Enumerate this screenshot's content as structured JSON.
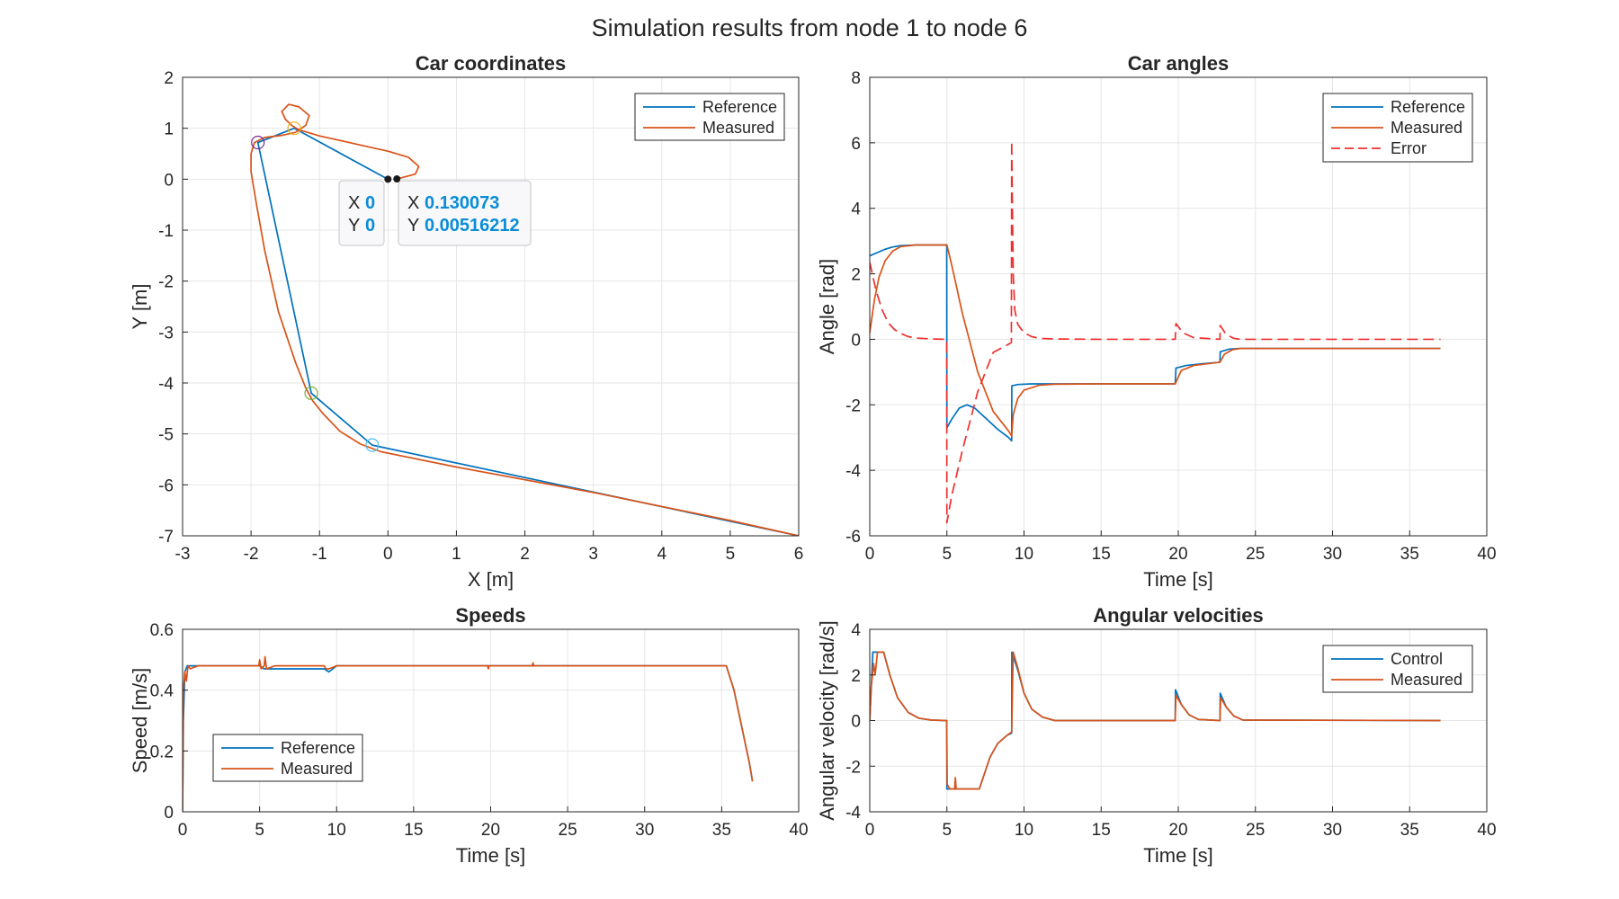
{
  "figure_title": "Simulation results from node 1 to node 6",
  "colors": {
    "blue": "#0072BD",
    "orange": "#D95319",
    "red": "#EF2F2F",
    "grid": "#e6e6e6",
    "axes": "#262626"
  },
  "chart_data": [
    {
      "id": "coords",
      "type": "line",
      "title": "Car coordinates",
      "xlabel": "X [m]",
      "ylabel": "Y [m]",
      "xlim": [
        -3,
        6
      ],
      "ylim": [
        -7,
        2
      ],
      "xticks": [
        -3,
        -2,
        -1,
        0,
        1,
        2,
        3,
        4,
        5,
        6
      ],
      "yticks": [
        -7,
        -6,
        -5,
        -4,
        -3,
        -2,
        -1,
        0,
        1,
        2
      ],
      "grid": true,
      "legend_position": "top-right",
      "series": [
        {
          "name": "Reference",
          "color": "blue",
          "x": [
            0,
            -1.37,
            -1.9,
            -1.12,
            -0.23,
            6.0
          ],
          "y": [
            0,
            1.0,
            0.72,
            -4.2,
            -5.22,
            -7.0
          ]
        },
        {
          "name": "Measured",
          "color": "orange",
          "x": [
            0.13,
            0.4,
            0.45,
            0.3,
            0.0,
            -0.5,
            -1.0,
            -1.3,
            -1.4,
            -1.5,
            -1.55,
            -1.45,
            -1.3,
            -1.15,
            -1.2,
            -1.35,
            -1.55,
            -1.8,
            -1.95,
            -2.0,
            -2.0,
            -1.92,
            -1.8,
            -1.6,
            -1.35,
            -1.2,
            -1.1,
            -0.95,
            -0.7,
            -0.4,
            -0.1,
            1.0,
            3.0,
            5.0,
            6.0
          ],
          "y": [
            0.005,
            0.1,
            0.25,
            0.43,
            0.55,
            0.7,
            0.85,
            0.97,
            1.05,
            1.18,
            1.33,
            1.47,
            1.42,
            1.25,
            1.06,
            0.92,
            0.86,
            0.82,
            0.72,
            0.5,
            0.15,
            -0.5,
            -1.4,
            -2.6,
            -3.6,
            -4.1,
            -4.35,
            -4.6,
            -4.95,
            -5.2,
            -5.35,
            -5.65,
            -6.15,
            -6.7,
            -7.0
          ]
        }
      ],
      "markers": [
        {
          "x": -1.9,
          "y": 0.72,
          "color": "#7E2F8E"
        },
        {
          "x": -1.37,
          "y": 1.0,
          "color": "#EDB120"
        },
        {
          "x": -1.12,
          "y": -4.2,
          "color": "#77AC30"
        },
        {
          "x": -0.23,
          "y": -5.22,
          "color": "#4DBEEE"
        }
      ],
      "datatips": [
        {
          "x_label": "X",
          "x_value": "0",
          "y_label": "Y",
          "y_value": "0",
          "px": 0,
          "py": 0
        },
        {
          "x_label": "X",
          "x_value": "0.130073",
          "y_label": "Y",
          "y_value": "0.00516212",
          "px": 0.130073,
          "py": 0.00516212
        }
      ]
    },
    {
      "id": "angles",
      "type": "line",
      "title": "Car angles",
      "xlabel": "Time [s]",
      "ylabel": "Angle [rad]",
      "xlim": [
        0,
        40
      ],
      "ylim": [
        -6,
        8
      ],
      "xticks": [
        0,
        5,
        10,
        15,
        20,
        25,
        30,
        35,
        40
      ],
      "yticks": [
        -6,
        -4,
        -2,
        0,
        2,
        4,
        6,
        8
      ],
      "grid": true,
      "legend_position": "top-right",
      "series": [
        {
          "name": "Reference",
          "color": "blue",
          "x": [
            0,
            0.5,
            1,
            1.5,
            2,
            3,
            4,
            4.99,
            5.0,
            5.3,
            5.8,
            6.3,
            6.8,
            7.5,
            8.3,
            9.0,
            9.2,
            9.21,
            9.6,
            10.5,
            12,
            15,
            19.8,
            19.85,
            20.5,
            21.5,
            22.7,
            22.72,
            23.3,
            24,
            37
          ],
          "x_note": "",
          "y": [
            2.55,
            2.65,
            2.75,
            2.82,
            2.86,
            2.88,
            2.88,
            2.88,
            -2.7,
            -2.45,
            -2.1,
            -2.0,
            -2.1,
            -2.4,
            -2.75,
            -3.0,
            -3.1,
            -1.42,
            -1.38,
            -1.36,
            -1.36,
            -1.36,
            -1.36,
            -0.88,
            -0.8,
            -0.75,
            -0.7,
            -0.38,
            -0.3,
            -0.28,
            -0.28
          ]
        },
        {
          "name": "Measured",
          "color": "orange",
          "x": [
            0,
            0.3,
            0.6,
            1.0,
            1.5,
            2.0,
            3.0,
            4.0,
            5.0,
            5.3,
            6.0,
            7.0,
            8.0,
            9.0,
            9.2,
            9.3,
            9.6,
            10.0,
            11.0,
            12,
            15,
            19.8,
            20.2,
            21,
            22.7,
            23.0,
            23.5,
            24,
            37
          ],
          "y": [
            0.2,
            1.2,
            1.9,
            2.4,
            2.7,
            2.83,
            2.88,
            2.88,
            2.88,
            2.3,
            0.8,
            -1.0,
            -2.2,
            -2.8,
            -2.95,
            -2.3,
            -1.8,
            -1.55,
            -1.4,
            -1.37,
            -1.36,
            -1.36,
            -0.95,
            -0.8,
            -0.7,
            -0.45,
            -0.32,
            -0.28,
            -0.28
          ]
        },
        {
          "name": "Error",
          "color": "red",
          "dashed": true,
          "x": [
            0,
            0.4,
            0.8,
            1.2,
            1.6,
            2.0,
            2.5,
            3.0,
            4.0,
            4.99,
            5.0,
            5.3,
            6.0,
            7.0,
            8.0,
            9.0,
            9.18,
            9.2,
            9.25,
            9.3,
            9.4,
            9.6,
            10.0,
            10.5,
            11.0,
            12,
            15,
            19.8,
            19.85,
            20.3,
            21,
            22.7,
            22.72,
            23.1,
            23.6,
            24,
            37
          ],
          "y": [
            2.35,
            1.5,
            0.9,
            0.5,
            0.3,
            0.18,
            0.08,
            0.04,
            0.01,
            0.0,
            -5.6,
            -4.8,
            -3.4,
            -1.6,
            -0.4,
            -0.15,
            -0.1,
            6.05,
            4.0,
            2.0,
            0.9,
            0.45,
            0.2,
            0.08,
            0.03,
            0.01,
            0.0,
            0.0,
            0.48,
            0.2,
            0.05,
            0.0,
            0.42,
            0.15,
            0.03,
            0.0,
            0.0
          ]
        }
      ]
    },
    {
      "id": "speeds",
      "type": "line",
      "title": "Speeds",
      "xlabel": "Time [s]",
      "ylabel": "Speed [m/s]",
      "xlim": [
        0,
        40
      ],
      "ylim": [
        0,
        0.6
      ],
      "xticks": [
        0,
        5,
        10,
        15,
        20,
        25,
        30,
        35,
        40
      ],
      "yticks": [
        0,
        0.2,
        0.4,
        0.6
      ],
      "grid": true,
      "legend_position": "bottom-left",
      "series": [
        {
          "name": "Reference",
          "color": "blue",
          "x": [
            0,
            0.05,
            0.15,
            0.3,
            1,
            5,
            5.3,
            6,
            9.2,
            9.5,
            10,
            35.3,
            35.8,
            36.3,
            36.8,
            37
          ],
          "y": [
            0,
            0.3,
            0.46,
            0.48,
            0.48,
            0.48,
            0.47,
            0.47,
            0.47,
            0.46,
            0.48,
            0.48,
            0.4,
            0.28,
            0.16,
            0.1
          ]
        },
        {
          "name": "Measured",
          "color": "orange",
          "x": [
            0,
            0.05,
            0.15,
            0.25,
            0.35,
            0.5,
            1,
            4.95,
            5.0,
            5.1,
            5.3,
            5.35,
            5.45,
            6,
            9.2,
            9.3,
            9.5,
            10,
            19.8,
            19.85,
            19.9,
            22.7,
            22.75,
            22.8,
            35.3,
            35.8,
            36.3,
            36.8,
            37
          ],
          "y": [
            0,
            0.4,
            0.46,
            0.43,
            0.48,
            0.47,
            0.48,
            0.48,
            0.5,
            0.47,
            0.48,
            0.51,
            0.47,
            0.48,
            0.48,
            0.47,
            0.47,
            0.48,
            0.48,
            0.47,
            0.48,
            0.48,
            0.49,
            0.48,
            0.48,
            0.4,
            0.28,
            0.16,
            0.1
          ]
        }
      ]
    },
    {
      "id": "angvel",
      "type": "line",
      "title": "Angular velocities",
      "xlabel": "Time [s]",
      "ylabel": "Angular velocity [rad/s]",
      "xlim": [
        0,
        40
      ],
      "ylim": [
        -4,
        4
      ],
      "xticks": [
        0,
        5,
        10,
        15,
        20,
        25,
        30,
        35,
        40
      ],
      "yticks": [
        -4,
        -2,
        0,
        2,
        4
      ],
      "grid": true,
      "legend_position": "top-right",
      "series": [
        {
          "name": "Control",
          "color": "blue",
          "x": [
            0,
            0.2,
            0.9,
            1.3,
            1.8,
            2.5,
            3.2,
            4.0,
            4.99,
            5.0,
            7.1,
            7.4,
            7.8,
            8.3,
            8.9,
            9.2,
            9.21,
            9.6,
            10.0,
            10.5,
            11.2,
            12,
            19.8,
            19.82,
            20.2,
            20.7,
            21.3,
            22.7,
            22.72,
            23.1,
            23.6,
            24.2,
            37
          ],
          "y": [
            0,
            3.0,
            3.0,
            2.0,
            1.0,
            0.35,
            0.1,
            0.02,
            0.0,
            -3.0,
            -3.0,
            -2.4,
            -1.6,
            -1.0,
            -0.65,
            -0.55,
            3.0,
            2.2,
            1.2,
            0.5,
            0.15,
            0.0,
            0.0,
            1.35,
            0.7,
            0.25,
            0.05,
            0.0,
            1.2,
            0.6,
            0.2,
            0.02,
            0.0
          ]
        },
        {
          "name": "Measured",
          "color": "orange",
          "x": [
            0,
            0.1,
            0.25,
            0.35,
            0.5,
            0.9,
            1.3,
            1.8,
            2.5,
            3.2,
            4.0,
            4.99,
            5.02,
            5.2,
            5.5,
            5.55,
            5.6,
            7.1,
            7.4,
            7.8,
            8.3,
            8.9,
            9.2,
            9.3,
            9.6,
            10.0,
            10.5,
            11.2,
            12,
            19.8,
            19.85,
            20.2,
            20.7,
            21.3,
            22.7,
            22.75,
            23.1,
            23.6,
            24.2,
            37
          ],
          "y": [
            0,
            1.5,
            2.5,
            2.0,
            3.0,
            3.0,
            2.0,
            1.0,
            0.35,
            0.1,
            0.02,
            0.0,
            -2.8,
            -3.0,
            -3.0,
            -2.5,
            -3.0,
            -3.0,
            -2.4,
            -1.6,
            -1.0,
            -0.65,
            -0.5,
            3.0,
            2.3,
            1.2,
            0.5,
            0.15,
            0.0,
            0.0,
            1.1,
            0.7,
            0.25,
            0.05,
            0.0,
            1.0,
            0.6,
            0.2,
            0.02,
            0.0
          ]
        }
      ]
    }
  ]
}
